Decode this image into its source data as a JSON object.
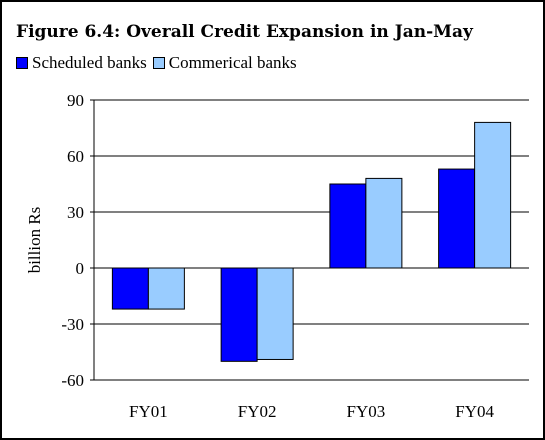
{
  "chart_data": {
    "type": "bar",
    "title": "Figure 6.4: Overall Credit Expansion in Jan-May",
    "xlabel": "",
    "ylabel": "billion Rs",
    "categories": [
      "FY01",
      "FY02",
      "FY03",
      "FY04"
    ],
    "series": [
      {
        "name": "Scheduled banks",
        "values": [
          -22,
          -50,
          45,
          53
        ],
        "color": "#0000ff"
      },
      {
        "name": "Commerical banks",
        "values": [
          -22,
          -49,
          48,
          78
        ],
        "color": "#99ccff"
      }
    ],
    "ylim": [
      -60,
      90
    ],
    "yticks": [
      90,
      60,
      30,
      0,
      -30,
      -60
    ],
    "ytick_labels": [
      "90",
      "60",
      "30",
      "0",
      "-30",
      "-60"
    ],
    "grid": true,
    "legend_position": "top-left"
  }
}
